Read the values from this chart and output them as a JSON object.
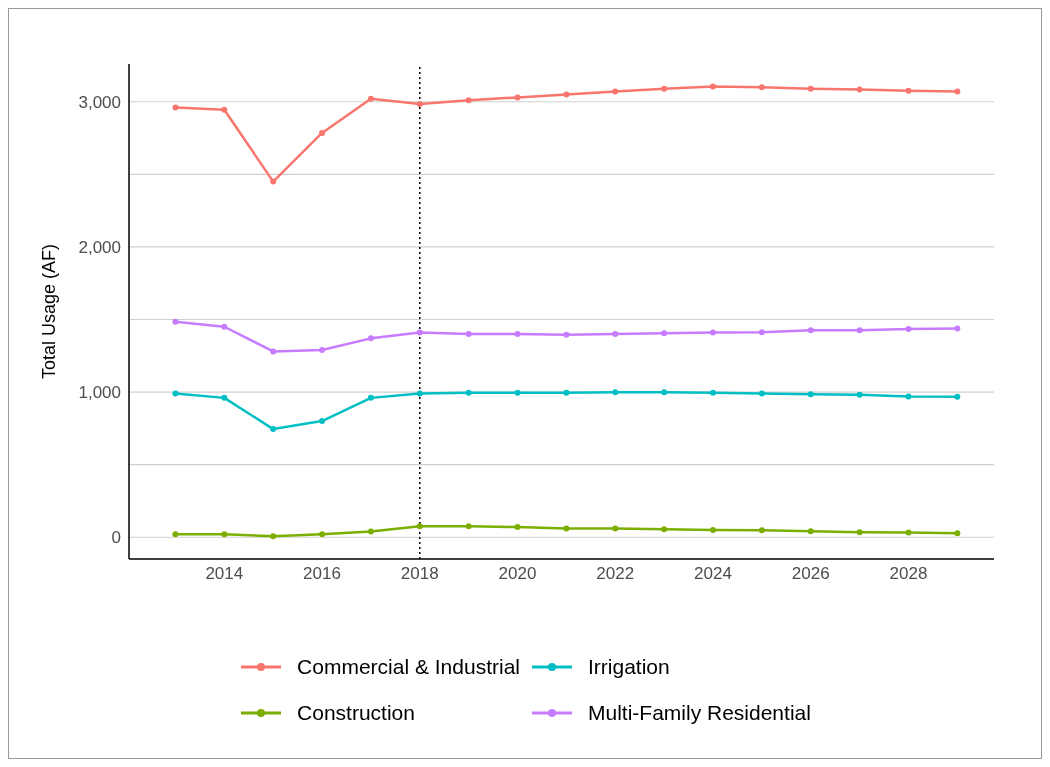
{
  "chart_data": {
    "type": "line",
    "ylabel": "Total Usage (AF)",
    "x": [
      2013,
      2014,
      2015,
      2016,
      2017,
      2018,
      2019,
      2020,
      2021,
      2022,
      2023,
      2024,
      2025,
      2026,
      2027,
      2028,
      2029
    ],
    "series": [
      {
        "name": "Commercial & Industrial",
        "color": "#f8766d",
        "values": [
          2960,
          2945,
          2450,
          2785,
          3020,
          2985,
          3010,
          3030,
          3050,
          3070,
          3090,
          3105,
          3100,
          3090,
          3085,
          3075,
          3070
        ]
      },
      {
        "name": "Construction",
        "color": "#7cae00",
        "values": [
          20,
          20,
          7,
          20,
          40,
          75,
          75,
          70,
          60,
          60,
          55,
          50,
          48,
          42,
          35,
          33,
          28
        ]
      },
      {
        "name": "Irrigation",
        "color": "#00bfc4",
        "values": [
          990,
          960,
          745,
          800,
          960,
          990,
          995,
          995,
          995,
          998,
          998,
          995,
          990,
          985,
          982,
          970,
          968
        ]
      },
      {
        "name": "Multi-Family Residential",
        "color": "#c77cff",
        "values": [
          1485,
          1450,
          1280,
          1290,
          1370,
          1410,
          1400,
          1400,
          1395,
          1400,
          1405,
          1410,
          1412,
          1425,
          1425,
          1435,
          1438
        ]
      }
    ],
    "xlim": [
      2012.05,
      2029.75
    ],
    "xticks": [
      2014,
      2016,
      2018,
      2020,
      2022,
      2024,
      2026,
      2028
    ],
    "ylim": [
      -150,
      3260
    ],
    "yticks": [
      0,
      {
        "value": 500,
        "label": null
      },
      {
        "value": 1000,
        "label": "1,000"
      },
      {
        "value": 1500,
        "label": null
      },
      {
        "value": 2000,
        "label": "2,000"
      },
      {
        "value": 2500,
        "label": null
      },
      {
        "value": 3000,
        "label": "3,000"
      }
    ],
    "ref_lines": [
      {
        "axis": "x",
        "value": 2018,
        "label": null,
        "color": "#000000",
        "line_style": "dotted"
      }
    ],
    "grid": "y",
    "legend": "bottom",
    "marker": "circle",
    "line_style": "solid"
  }
}
